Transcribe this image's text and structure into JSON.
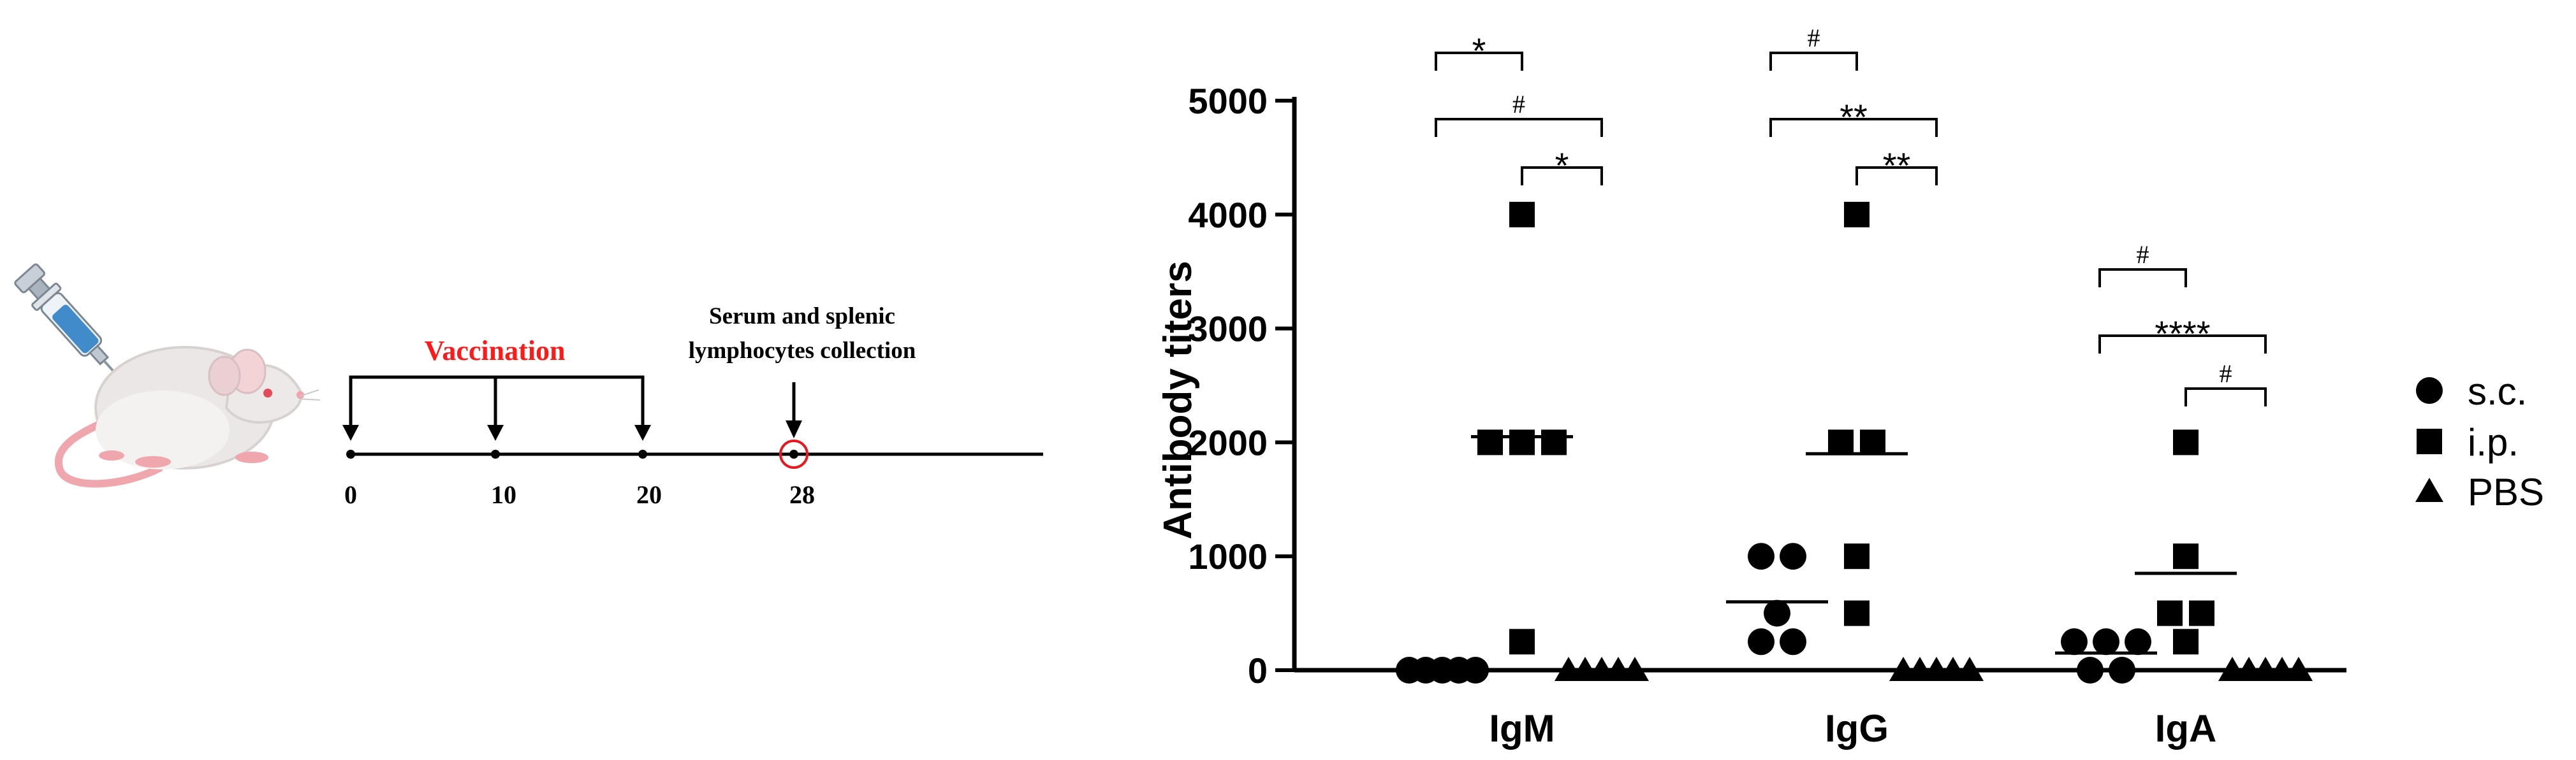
{
  "timeline": {
    "vaccination_label": "Vaccination",
    "collection_label_line1": "Serum and splenic",
    "collection_label_line2": "lymphocytes collection",
    "ticks": [
      "0",
      "10",
      "20",
      "28"
    ],
    "vaccination_color": "#ff1a1a",
    "marker_color": "#e8191e"
  },
  "illustration": {
    "icon": "mouse-with-syringe-icon"
  },
  "chart_data": {
    "type": "scatter",
    "ylabel": "Antibody titers",
    "xlabel": "",
    "title": "",
    "ylim": [
      0,
      5000
    ],
    "yticks": [
      "0",
      "1000",
      "2000",
      "3000",
      "4000",
      "5000"
    ],
    "categories": [
      "IgM",
      "IgG",
      "IgA"
    ],
    "legend_position": "right",
    "series": [
      {
        "name": "s.c.",
        "marker": "circle",
        "values": [
          [
            0,
            0,
            0,
            0,
            0
          ],
          [
            1000,
            1000,
            500,
            250,
            250
          ],
          [
            250,
            250,
            250,
            0,
            0
          ]
        ],
        "means": [
          0,
          600,
          150
        ]
      },
      {
        "name": "i.p.",
        "marker": "square",
        "values": [
          [
            4000,
            2000,
            2000,
            2000,
            250
          ],
          [
            4000,
            2000,
            2000,
            1000,
            500
          ],
          [
            2000,
            1000,
            500,
            500,
            250
          ]
        ],
        "means": [
          2050,
          1900,
          850
        ]
      },
      {
        "name": "PBS",
        "marker": "triangle",
        "values": [
          [
            0,
            0,
            0,
            0,
            0
          ],
          [
            0,
            0,
            0,
            0,
            0
          ],
          [
            0,
            0,
            0,
            0,
            0
          ]
        ],
        "means": [
          0,
          0,
          0
        ]
      }
    ],
    "significance": [
      {
        "group": "IgM",
        "pair": [
          "s.c.",
          "i.p."
        ],
        "label": "*"
      },
      {
        "group": "IgM",
        "pair": [
          "s.c.",
          "PBS"
        ],
        "label": "#"
      },
      {
        "group": "IgM",
        "pair": [
          "i.p.",
          "PBS"
        ],
        "label": "*"
      },
      {
        "group": "IgG",
        "pair": [
          "s.c.",
          "i.p."
        ],
        "label": "#"
      },
      {
        "group": "IgG",
        "pair": [
          "s.c.",
          "PBS"
        ],
        "label": "**"
      },
      {
        "group": "IgG",
        "pair": [
          "i.p.",
          "PBS"
        ],
        "label": "**"
      },
      {
        "group": "IgA",
        "pair": [
          "s.c.",
          "i.p."
        ],
        "label": "#"
      },
      {
        "group": "IgA",
        "pair": [
          "s.c.",
          "PBS"
        ],
        "label": "****"
      },
      {
        "group": "IgA",
        "pair": [
          "i.p.",
          "PBS"
        ],
        "label": "#"
      }
    ]
  }
}
